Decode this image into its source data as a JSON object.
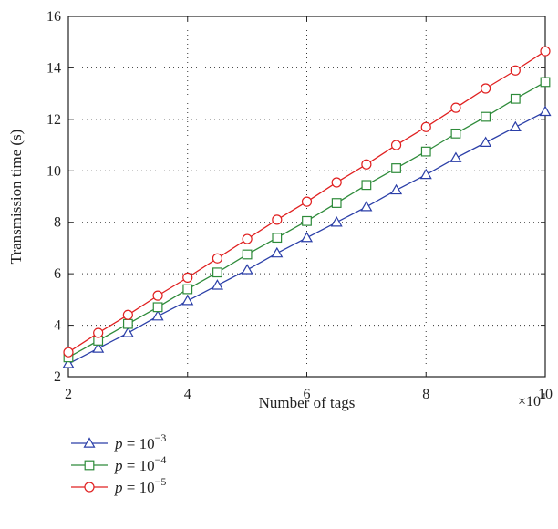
{
  "chart_data": {
    "type": "line",
    "xlabel": "Number of tags",
    "ylabel": "Transmission time (s)",
    "x_multiplier_label": "×10",
    "x_multiplier_exp": "4",
    "xlim": [
      2,
      10
    ],
    "ylim": [
      2,
      16
    ],
    "xticks": [
      "2",
      "4",
      "6",
      "8",
      "10"
    ],
    "yticks": [
      "2",
      "4",
      "6",
      "8",
      "10",
      "12",
      "14",
      "16"
    ],
    "grid": true,
    "legend_position": "below-left",
    "x": [
      2,
      2.5,
      3,
      3.5,
      4,
      4.5,
      5,
      5.5,
      6,
      6.5,
      7,
      7.5,
      8,
      8.5,
      9,
      9.5,
      10
    ],
    "series": [
      {
        "name": "p = 10^-3",
        "legend_prefix": "p",
        "legend_mid": " = 10",
        "legend_exp": "−3",
        "color": "#2b3fa8",
        "marker": "triangle",
        "values": [
          2.5,
          3.1,
          3.7,
          4.35,
          4.95,
          5.55,
          6.15,
          6.8,
          7.4,
          8.0,
          8.6,
          9.25,
          9.85,
          10.5,
          11.1,
          11.7,
          12.3
        ]
      },
      {
        "name": "p = 10^-4",
        "legend_prefix": "p",
        "legend_mid": " = 10",
        "legend_exp": "−4",
        "color": "#2e8b3a",
        "marker": "square",
        "values": [
          2.75,
          3.4,
          4.05,
          4.7,
          5.4,
          6.05,
          6.75,
          7.4,
          8.05,
          8.75,
          9.45,
          10.1,
          10.75,
          11.45,
          12.1,
          12.8,
          13.45
        ]
      },
      {
        "name": "p = 10^-5",
        "legend_prefix": "p",
        "legend_mid": " = 10",
        "legend_exp": "−5",
        "color": "#e02020",
        "marker": "circle",
        "values": [
          2.95,
          3.7,
          4.4,
          5.15,
          5.85,
          6.6,
          7.35,
          8.1,
          8.8,
          9.55,
          10.25,
          11.0,
          11.7,
          12.45,
          13.2,
          13.9,
          14.65
        ]
      }
    ]
  }
}
